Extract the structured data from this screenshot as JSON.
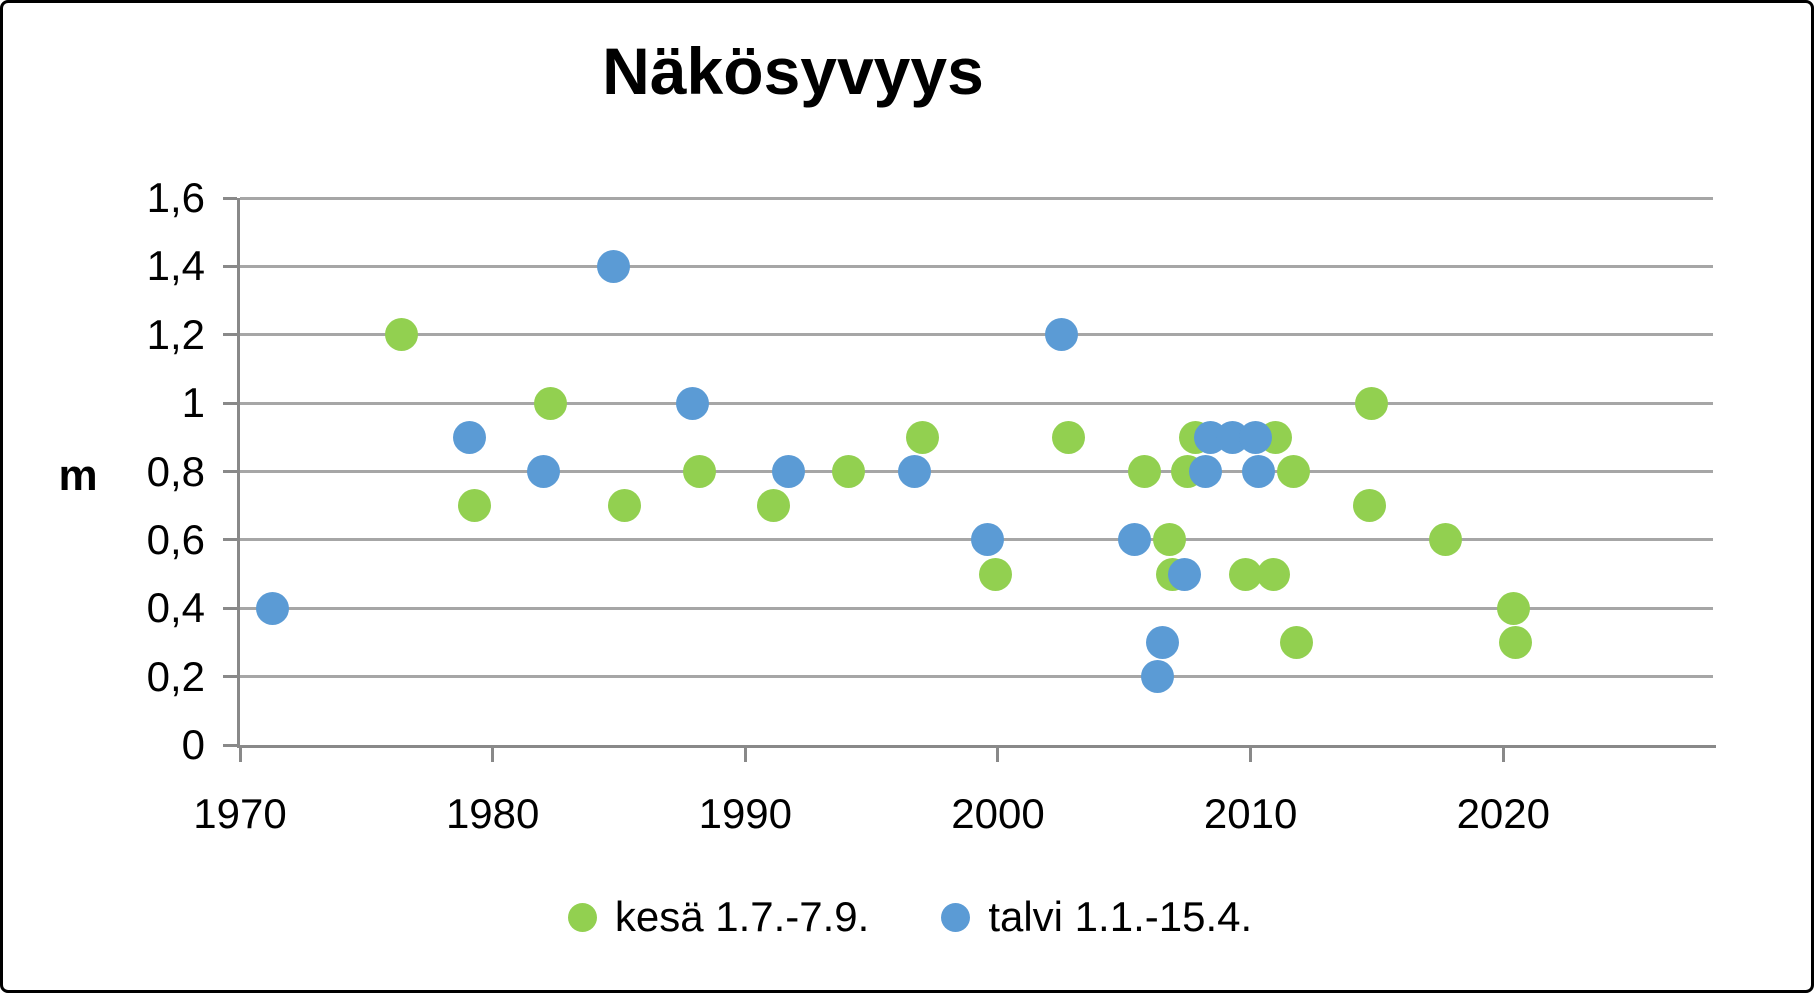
{
  "chart_data": {
    "type": "scatter",
    "title": "Näkösyvyys",
    "xlabel": "",
    "ylabel": "m",
    "xlim": [
      1970,
      2028.3
    ],
    "ylim": [
      0,
      1.6
    ],
    "grid": "horizontal",
    "legend_position": "bottom",
    "x_ticks": [
      {
        "v": 1970,
        "label": "1970"
      },
      {
        "v": 1980,
        "label": "1980"
      },
      {
        "v": 1990,
        "label": "1990"
      },
      {
        "v": 2000,
        "label": "2000"
      },
      {
        "v": 2010,
        "label": "2010"
      },
      {
        "v": 2020,
        "label": "2020"
      }
    ],
    "y_ticks": [
      {
        "v": 0,
        "label": "0"
      },
      {
        "v": 0.2,
        "label": "0,2"
      },
      {
        "v": 0.4,
        "label": "0,4"
      },
      {
        "v": 0.6,
        "label": "0,6"
      },
      {
        "v": 0.8,
        "label": "0,8"
      },
      {
        "v": 1,
        "label": "1"
      },
      {
        "v": 1.2,
        "label": "1,2"
      },
      {
        "v": 1.4,
        "label": "1,4"
      },
      {
        "v": 1.6,
        "label": "1,6"
      }
    ],
    "series": [
      {
        "name": "kesä 1.7.-7.9.",
        "color": "#92D050",
        "points": [
          [
            1976.4,
            1.2
          ],
          [
            1979.3,
            0.7
          ],
          [
            1982.3,
            1.0
          ],
          [
            1985.2,
            0.7
          ],
          [
            1988.2,
            0.8
          ],
          [
            1991.1,
            0.7
          ],
          [
            1994.1,
            0.8
          ],
          [
            1997.0,
            0.9
          ],
          [
            1999.9,
            0.5
          ],
          [
            2002.8,
            0.9
          ],
          [
            2005.8,
            0.8
          ],
          [
            2006.8,
            0.6
          ],
          [
            2006.9,
            0.5
          ],
          [
            2007.5,
            0.8
          ],
          [
            2007.8,
            0.9
          ],
          [
            2009.8,
            0.5
          ],
          [
            2010.9,
            0.5
          ],
          [
            2011.0,
            0.9
          ],
          [
            2011.7,
            0.8
          ],
          [
            2011.8,
            0.3
          ],
          [
            2014.7,
            0.7
          ],
          [
            2014.8,
            1.0
          ],
          [
            2017.7,
            0.6
          ],
          [
            2020.4,
            0.4
          ],
          [
            2020.5,
            0.3
          ]
        ]
      },
      {
        "name": "talvi 1.1.-15.4.",
        "color": "#5B9BD5",
        "points": [
          [
            1971.3,
            0.4
          ],
          [
            1979.1,
            0.9
          ],
          [
            1982.0,
            0.8
          ],
          [
            1984.8,
            1.4
          ],
          [
            1987.9,
            1.0
          ],
          [
            1991.7,
            0.8
          ],
          [
            1996.7,
            0.8
          ],
          [
            1999.6,
            0.6
          ],
          [
            2002.5,
            1.2
          ],
          [
            2005.4,
            0.6
          ],
          [
            2006.3,
            0.2
          ],
          [
            2006.5,
            0.3
          ],
          [
            2007.4,
            0.5
          ],
          [
            2008.2,
            0.8
          ],
          [
            2008.4,
            0.9
          ],
          [
            2009.3,
            0.9
          ],
          [
            2010.2,
            0.9
          ],
          [
            2010.3,
            0.8
          ]
        ]
      }
    ]
  }
}
